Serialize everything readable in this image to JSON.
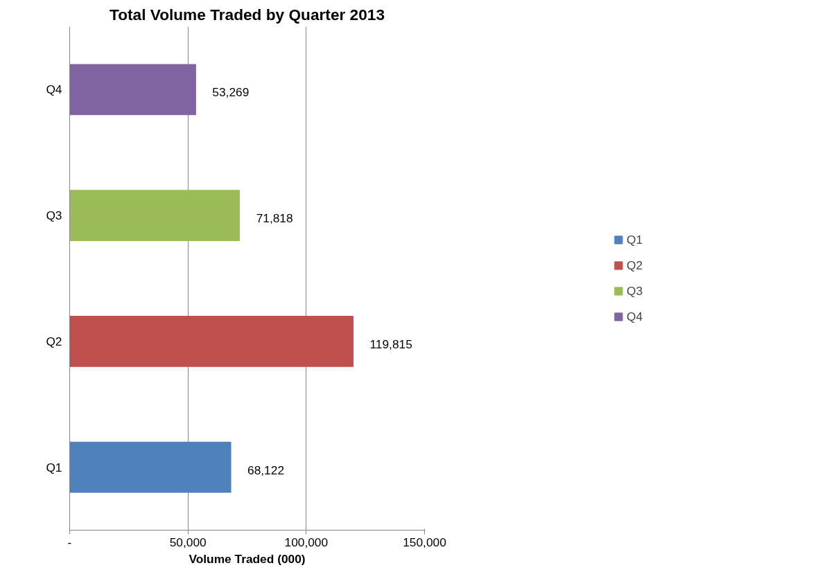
{
  "chart_data": {
    "type": "bar",
    "orientation": "horizontal",
    "title": "Total Volume Traded by Quarter 2013",
    "xlabel": "Volume Traded (000)",
    "categories": [
      "Q4",
      "Q3",
      "Q2",
      "Q1"
    ],
    "series": [
      {
        "name": "Q1",
        "color": "#4f81bd",
        "values": [
          null,
          null,
          null,
          68122
        ],
        "value_labels": [
          null,
          null,
          null,
          "68,122"
        ]
      },
      {
        "name": "Q2",
        "color": "#c0504d",
        "values": [
          null,
          null,
          119815,
          null
        ],
        "value_labels": [
          null,
          null,
          "119,815",
          null
        ]
      },
      {
        "name": "Q3",
        "color": "#9bbb59",
        "values": [
          null,
          71818,
          null,
          null
        ],
        "value_labels": [
          null,
          "71,818",
          null,
          null
        ]
      },
      {
        "name": "Q4",
        "color": "#8064a2",
        "values": [
          53269,
          null,
          null,
          null
        ],
        "value_labels": [
          "53,269",
          null,
          null,
          null
        ]
      }
    ],
    "xlim": [
      0,
      150000
    ],
    "xticks": [
      {
        "value": 0,
        "label": "-"
      },
      {
        "value": 50000,
        "label": "50,000"
      },
      {
        "value": 100000,
        "label": "100,000"
      },
      {
        "value": 150000,
        "label": "150,000"
      }
    ],
    "grid": "x",
    "legend": "right"
  }
}
